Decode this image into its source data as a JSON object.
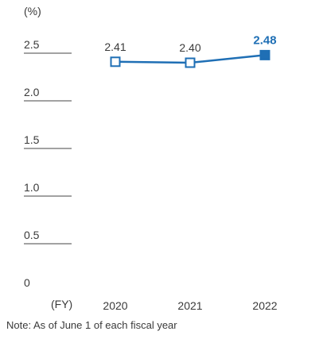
{
  "chart_data": {
    "type": "line",
    "unit_label": "(%)",
    "x_label": "(FY)",
    "categories": [
      "2020",
      "2021",
      "2022"
    ],
    "series": [
      {
        "values": [
          2.41,
          2.4,
          2.48
        ],
        "value_labels": [
          "2.41",
          "2.40",
          "2.48"
        ],
        "latest_highlighted": true
      }
    ],
    "y_ticks": [
      {
        "value": 2.5,
        "label": "2.5"
      },
      {
        "value": 2.0,
        "label": "2.0"
      },
      {
        "value": 1.5,
        "label": "1.5"
      },
      {
        "value": 1.0,
        "label": "1.0"
      },
      {
        "value": 0.5,
        "label": "0.5"
      },
      {
        "value": 0,
        "label": "0"
      }
    ],
    "ylim": [
      0,
      2.5
    ],
    "grid": false,
    "colors": {
      "line": "#1f6fb5",
      "text": "#3a3a3a",
      "tick_rule": "#444444"
    }
  },
  "note": "Note: As of June 1 of each fiscal year"
}
